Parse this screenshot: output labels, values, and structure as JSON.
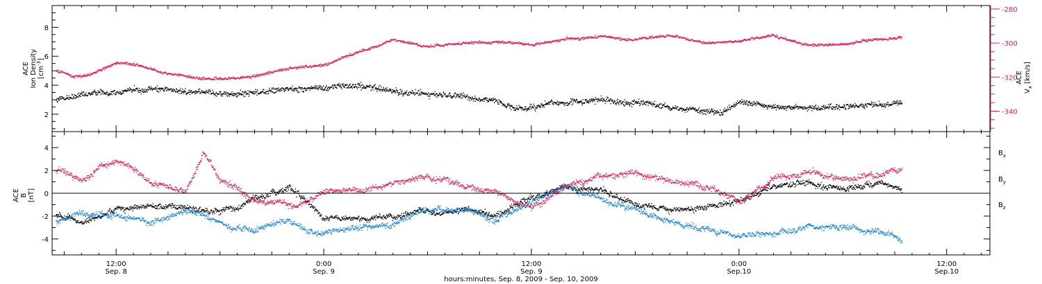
{
  "colors": {
    "black": "#000000",
    "red": "#d81e5b",
    "blue": "#1a7fd6"
  },
  "x_axis": {
    "ticks": [
      {
        "time": "12:00",
        "date": "Sep. 8",
        "hours": 12
      },
      {
        "time": "0:00",
        "date": "Sep. 9",
        "hours": 24
      },
      {
        "time": "12:00",
        "date": "Sep. 9",
        "hours": 36
      },
      {
        "time": "0:00",
        "date": "Sep.10",
        "hours": 48
      },
      {
        "time": "12:00",
        "date": "Sep.10",
        "hours": 60
      }
    ],
    "range_hours": [
      8.3,
      62.5
    ],
    "label": "hours:minutes, Sep.  8, 2009 - Sep. 10, 2009"
  },
  "chart_data": [
    {
      "type": "scatter",
      "panel": "top",
      "left_axis": {
        "title_line1": "ACE",
        "title_line2": "Ion Density",
        "unit_base": "[cm",
        "unit_sup": "-3",
        "unit_end": "]",
        "ylim": [
          0.8,
          9.5
        ],
        "ticks": [
          2,
          4,
          6,
          8
        ]
      },
      "right_axis": {
        "title_line1": "ACE",
        "title_base": "V",
        "title_sub": "x",
        "unit": "[km/s]",
        "ylim": [
          -352,
          -278
        ],
        "ticks": [
          -280,
          -300,
          -320,
          -340
        ]
      },
      "series": [
        {
          "color": "black",
          "axis": "left",
          "x": [
            8.5,
            10,
            12,
            14,
            16,
            18,
            20,
            22,
            24,
            26,
            28,
            30,
            32,
            34,
            35.5,
            36,
            38,
            40,
            42,
            44,
            45.5,
            47,
            48,
            50,
            52,
            54,
            56,
            57.4
          ],
          "y": [
            3.0,
            3.3,
            3.6,
            3.8,
            3.6,
            3.4,
            3.5,
            3.8,
            3.9,
            4.0,
            3.7,
            3.4,
            3.2,
            2.9,
            2.4,
            2.6,
            2.8,
            3.0,
            2.9,
            2.6,
            2.4,
            2.1,
            2.8,
            2.6,
            2.5,
            2.6,
            2.7,
            2.8
          ]
        },
        {
          "color": "red",
          "axis": "right",
          "x": [
            8.5,
            9.5,
            10.5,
            12,
            13.5,
            15,
            16.5,
            18,
            20,
            22,
            24,
            26,
            28,
            30,
            32,
            34,
            35.5,
            36,
            38,
            40,
            42,
            44,
            46,
            48,
            50,
            52,
            54,
            56,
            57.4
          ],
          "y": [
            -316,
            -319,
            -318,
            -311,
            -313,
            -318,
            -320,
            -321,
            -319,
            -314,
            -313,
            -305,
            -298,
            -302,
            -300,
            -299,
            -300,
            -301,
            -297,
            -296,
            -298,
            -296,
            -300,
            -299,
            -295,
            -302,
            -300,
            -297,
            -297
          ]
        }
      ]
    },
    {
      "type": "scatter",
      "panel": "bottom",
      "left_axis": {
        "title_line1": "ACE",
        "title_line2": "B",
        "unit": "[nT]",
        "ylim": [
          -5.4,
          5.4
        ],
        "ticks": [
          4,
          2,
          0,
          -2,
          -4
        ]
      },
      "zero_line": true,
      "series": [
        {
          "name_base": "B",
          "name_sub": "x",
          "color": "black",
          "x": [
            8.5,
            10,
            12,
            14,
            16,
            18,
            20,
            22,
            24,
            26,
            28,
            30,
            32,
            34,
            36,
            38,
            40,
            42,
            44,
            46,
            48,
            50,
            52,
            54,
            56,
            57.4
          ],
          "y": [
            -1.8,
            -2.5,
            -1.5,
            -1.0,
            -1.2,
            -1.5,
            -0.5,
            0.8,
            -2.0,
            -2.2,
            -1.8,
            -1.5,
            -1.8,
            -2.0,
            -0.5,
            0.5,
            0.2,
            -1.0,
            -1.5,
            -1.2,
            -0.5,
            0.5,
            0.8,
            0.3,
            0.8,
            0.4
          ]
        },
        {
          "name_base": "B",
          "name_sub": "y",
          "color": "blue",
          "x": [
            8.5,
            10,
            12,
            14,
            16,
            18,
            20,
            22,
            24,
            26,
            28,
            30,
            32,
            34,
            36,
            38,
            40,
            42,
            44,
            46,
            48,
            50,
            52,
            54,
            56,
            57.4
          ],
          "y": [
            -2.5,
            -1.8,
            -2.0,
            -2.8,
            -1.5,
            -2.5,
            -3.0,
            -2.5,
            -3.5,
            -3.0,
            -2.5,
            -1.5,
            -1.2,
            -2.5,
            -0.8,
            0.8,
            -0.5,
            -1.5,
            -2.5,
            -3.0,
            -3.8,
            -3.5,
            -3.0,
            -2.8,
            -3.2,
            -4.0
          ]
        },
        {
          "name_base": "B",
          "name_sub": "z",
          "color": "red",
          "x": [
            8.5,
            10,
            11,
            12,
            13,
            14,
            16,
            17,
            18,
            19,
            20,
            22,
            24,
            26,
            28,
            30,
            32,
            34,
            36,
            38,
            40,
            42,
            44,
            46,
            48,
            50,
            52,
            54,
            56,
            57.4
          ],
          "y": [
            2.2,
            1.0,
            2.0,
            2.8,
            2.2,
            1.0,
            0.5,
            3.5,
            1.0,
            0.5,
            -0.5,
            -1.0,
            0.0,
            0.5,
            1.0,
            1.5,
            0.8,
            0.0,
            -1.0,
            0.5,
            1.5,
            1.8,
            1.0,
            0.5,
            -0.8,
            1.5,
            2.0,
            1.2,
            1.8,
            2.0
          ]
        }
      ]
    }
  ]
}
